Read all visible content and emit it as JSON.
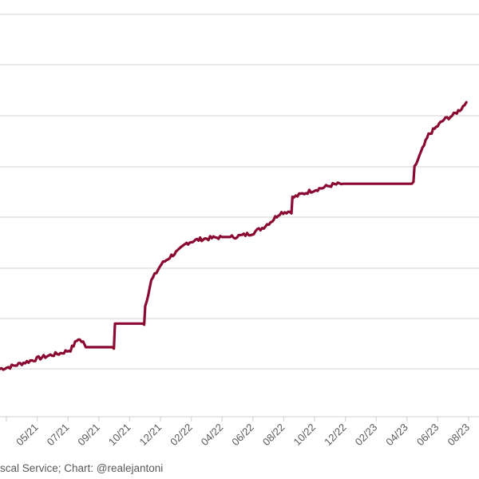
{
  "chart_data": {
    "type": "line",
    "color": "#8b0a32",
    "grid": true,
    "tick_labels": [
      "05/21",
      "07/21",
      "09/21",
      "10/21",
      "12/21",
      "02/22",
      "04/22",
      "06/22",
      "08/22",
      "10/22",
      "12/22",
      "02/23",
      "04/23",
      "06/23",
      "08/23"
    ],
    "ylim": [
      0,
      8
    ],
    "series": [
      {
        "points": [
          [
            0,
            0.0
          ],
          [
            2,
            0.04
          ],
          [
            4,
            0.1
          ],
          [
            6,
            0.16
          ],
          [
            8,
            0.22
          ],
          [
            10,
            0.27
          ],
          [
            12,
            0.31
          ],
          [
            14,
            0.38
          ],
          [
            15.5,
            0.6
          ],
          [
            16.5,
            0.52
          ],
          [
            17,
            0.43
          ],
          [
            18,
            0.43
          ],
          [
            20,
            0.43
          ],
          [
            22,
            0.43
          ],
          [
            22.6,
            0.43
          ],
          [
            22.8,
            0.9
          ],
          [
            24,
            0.9
          ],
          [
            26,
            0.9
          ],
          [
            28.6,
            0.9
          ],
          [
            28.8,
            1.25
          ],
          [
            30,
            1.75
          ],
          [
            32,
            2.08
          ],
          [
            34,
            2.25
          ],
          [
            35.5,
            2.35
          ],
          [
            37,
            2.5
          ],
          [
            38.5,
            2.55
          ],
          [
            40,
            2.58
          ],
          [
            42,
            2.6
          ],
          [
            44,
            2.62
          ],
          [
            46,
            2.62
          ],
          [
            48,
            2.65
          ],
          [
            50,
            2.7
          ],
          [
            52,
            2.8
          ],
          [
            54,
            2.95
          ],
          [
            55.5,
            3.1
          ],
          [
            56.5,
            3.12
          ],
          [
            57.8,
            3.13
          ],
          [
            58,
            3.4
          ],
          [
            60,
            3.48
          ],
          [
            62,
            3.55
          ],
          [
            64,
            3.6
          ],
          [
            66,
            3.66
          ],
          [
            68,
            3.68
          ],
          [
            70,
            3.68
          ],
          [
            72,
            3.68
          ],
          [
            74,
            3.68
          ],
          [
            76,
            3.68
          ],
          [
            78,
            3.68
          ],
          [
            80,
            3.68
          ],
          [
            82,
            3.68
          ],
          [
            82.2,
            4.0
          ],
          [
            83.5,
            4.3
          ],
          [
            85,
            4.65
          ],
          [
            86.5,
            4.8
          ],
          [
            88,
            4.95
          ],
          [
            89,
            5.0
          ],
          [
            90,
            5.05
          ],
          [
            91.5,
            5.18
          ],
          [
            92.5,
            5.3
          ]
        ]
      }
    ],
    "annotations": [
      "iscal Service; Chart: @realejantoni"
    ]
  }
}
